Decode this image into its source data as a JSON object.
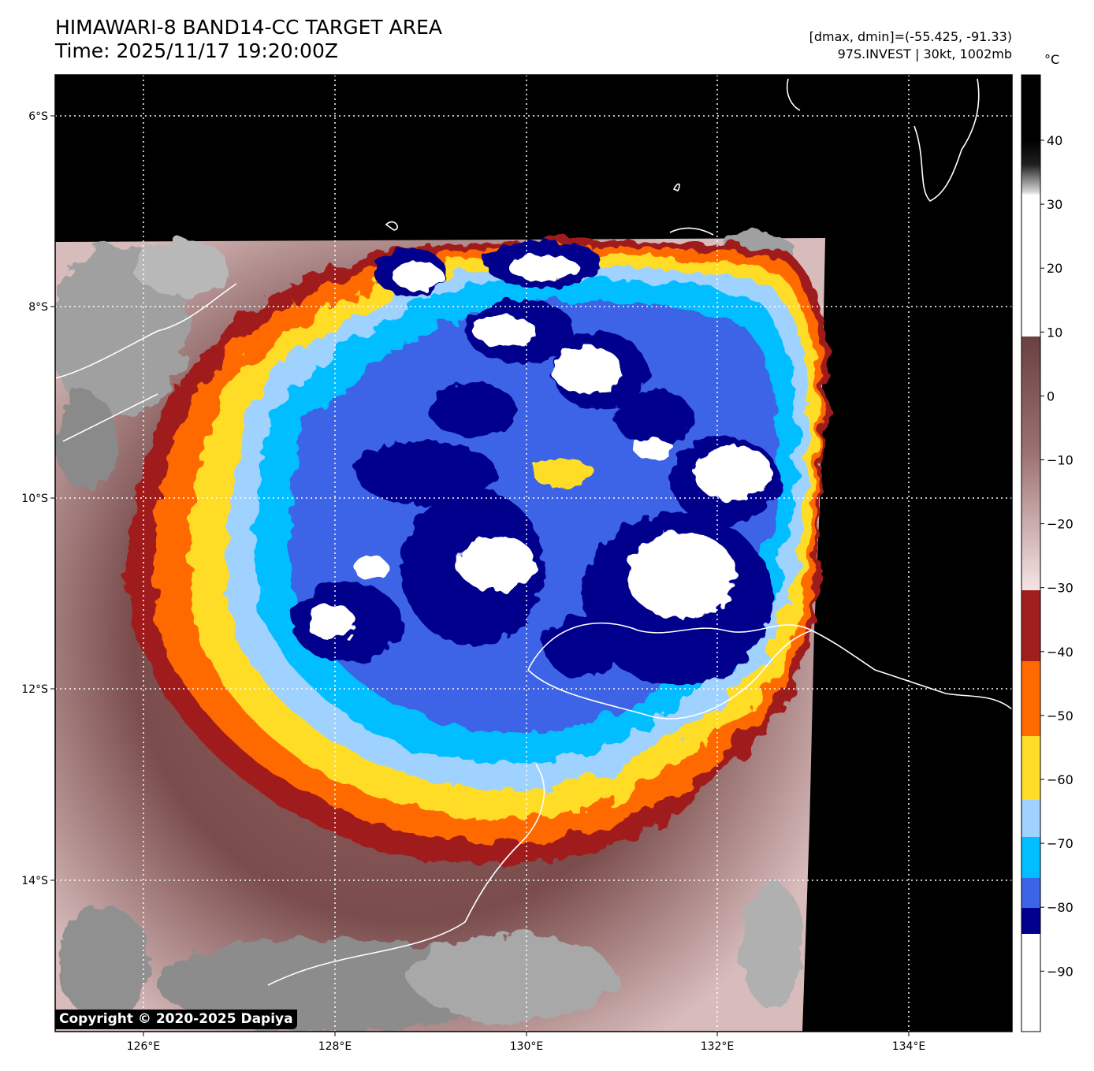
{
  "title": {
    "line1": "HIMAWARI-8 BAND14-CC TARGET AREA",
    "line2": "Time: 2025/11/17 19:20:00Z"
  },
  "info": {
    "range": "[dmax, dmin]=(-55.425, -91.33)",
    "storm": "97S.INVEST | 30kt, 1002mb"
  },
  "map": {
    "lat_ticks": [
      "6°S",
      "8°S",
      "10°S",
      "12°S",
      "14°S"
    ],
    "lon_ticks": [
      "126°E",
      "128°E",
      "130°E",
      "132°E",
      "134°E"
    ],
    "grid": "dotted"
  },
  "colorbar": {
    "unit": "°C",
    "ticks": [
      "40",
      "30",
      "20",
      "10",
      "0",
      "−10",
      "−20",
      "−30",
      "−40",
      "−50",
      "−60",
      "−70",
      "−80",
      "−90"
    ],
    "colors": {
      "warm_top": "#000000",
      "grey_mid": "#8c8c8c",
      "white_10": "#ffffff",
      "brown": "#6b4040",
      "pink": "#f2dcdc",
      "red": "#a01e1e",
      "orange": "#ff6a00",
      "yellow": "#ffdc28",
      "light_blue": "#a0d2ff",
      "cyan": "#00beff",
      "royal_blue": "#3c64e6",
      "navy": "#00008c",
      "cold_white": "#ffffff"
    }
  },
  "copyright": "Copyright © 2020-2025 Dapiya"
}
